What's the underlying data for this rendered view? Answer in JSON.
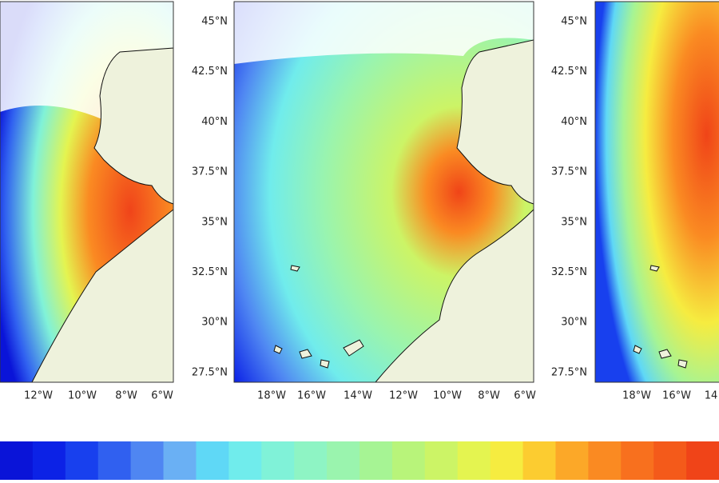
{
  "panels": [
    {
      "lon_labels": [
        "12°W",
        "10°W",
        "8°W",
        "6°W"
      ]
    },
    {
      "lon_labels": [
        "18°W",
        "16°W",
        "14°W",
        "12°W",
        "10°W",
        "8°W",
        "6°W"
      ]
    },
    {
      "lon_labels": [
        "18°W",
        "16°W",
        "14"
      ]
    }
  ],
  "lat_labels_left": [
    "45°N",
    "42.5°N",
    "40°N",
    "37.5°N",
    "35°N",
    "32.5°N",
    "30°N",
    "27.5°N"
  ],
  "lat_labels_right": [
    "45°N",
    "42.5°N",
    "40°N",
    "37.5°N",
    "35°N",
    "32.5°N",
    "30°N",
    "27.5°N"
  ],
  "colorbar": {
    "colors": [
      "#0a14d8",
      "#0c22e6",
      "#1840ee",
      "#3060f0",
      "#4f86f2",
      "#6ab0f4",
      "#5fd8f6",
      "#70ecec",
      "#80f2d8",
      "#8ef4c4",
      "#9af4ae",
      "#a6f494",
      "#b8f47a",
      "#ccf466",
      "#e4f450",
      "#f6ec40",
      "#fccc30",
      "#fca828",
      "#fa8a22",
      "#f8701e",
      "#f45a1a",
      "#f04418"
    ]
  }
}
